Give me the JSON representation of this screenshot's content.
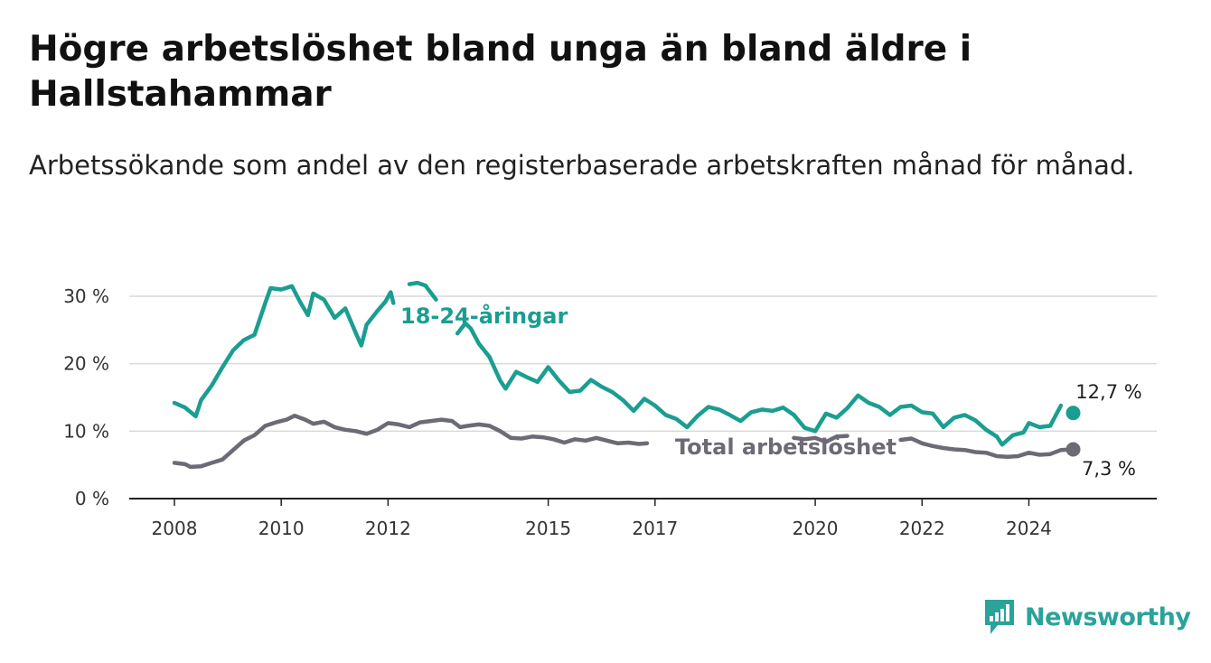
{
  "title": "Högre arbetslöshet bland unga än bland äldre i Hallstahammar",
  "subtitle": "Arbetssökande som andel av den registerbaserade arbetskraften månad för månad.",
  "brand": {
    "name": "Newsworthy",
    "icon": "newsworthy-logo-icon",
    "color": "#2aa399"
  },
  "chart_data": {
    "type": "line",
    "title": "",
    "xlabel": "",
    "ylabel": "",
    "ylim": [
      0,
      30
    ],
    "yticks": [
      0,
      10,
      20,
      30
    ],
    "ytick_labels": [
      "0 %",
      "10 %",
      "20 %",
      "30 %"
    ],
    "xticks": [
      2008,
      2010,
      2012,
      2015,
      2017,
      2020,
      2022,
      2024
    ],
    "xtick_labels": [
      "2008",
      "2010",
      "2012",
      "2015",
      "2017",
      "2020",
      "2022",
      "2024"
    ],
    "grid": true,
    "legend": "none (series labelled inline)",
    "series": [
      {
        "name": "18-24-åringar",
        "color": "#1a9e91",
        "end_label": "12,7 %",
        "points": [
          [
            2008.0,
            14.2
          ],
          [
            2008.2,
            13.5
          ],
          [
            2008.4,
            12.2
          ],
          [
            2008.5,
            14.6
          ],
          [
            2008.7,
            16.8
          ],
          [
            2008.9,
            19.5
          ],
          [
            2009.1,
            22.0
          ],
          [
            2009.3,
            23.5
          ],
          [
            2009.5,
            24.3
          ],
          [
            2009.7,
            29.0
          ],
          [
            2009.8,
            31.2
          ],
          [
            2010.0,
            31.0
          ],
          [
            2010.2,
            31.5
          ],
          [
            2010.35,
            29.2
          ],
          [
            2010.5,
            27.2
          ],
          [
            2010.6,
            30.4
          ],
          [
            2010.8,
            29.5
          ],
          [
            2011.0,
            26.8
          ],
          [
            2011.2,
            28.2
          ],
          [
            2011.4,
            24.5
          ],
          [
            2011.5,
            22.7
          ],
          [
            2011.6,
            25.8
          ],
          [
            2011.8,
            27.8
          ],
          [
            2011.95,
            29.2
          ],
          [
            2012.05,
            30.6
          ],
          [
            2012.1,
            29.0
          ],
          [
            2012.4,
            31.8
          ],
          [
            2012.55,
            32.0
          ],
          [
            2012.7,
            31.6
          ],
          [
            2012.9,
            29.5
          ],
          [
            2013.3,
            24.5
          ],
          [
            2013.45,
            26.0
          ],
          [
            2013.55,
            25.2
          ],
          [
            2013.7,
            23.0
          ],
          [
            2013.9,
            21.0
          ],
          [
            2014.1,
            17.5
          ],
          [
            2014.2,
            16.3
          ],
          [
            2014.4,
            18.8
          ],
          [
            2014.6,
            18.0
          ],
          [
            2014.8,
            17.3
          ],
          [
            2015.0,
            19.5
          ],
          [
            2015.2,
            17.5
          ],
          [
            2015.4,
            15.8
          ],
          [
            2015.6,
            16.0
          ],
          [
            2015.8,
            17.6
          ],
          [
            2016.0,
            16.6
          ],
          [
            2016.2,
            15.8
          ],
          [
            2016.4,
            14.6
          ],
          [
            2016.6,
            13.0
          ],
          [
            2016.8,
            14.8
          ],
          [
            2017.0,
            13.8
          ],
          [
            2017.2,
            12.4
          ],
          [
            2017.4,
            11.8
          ],
          [
            2017.6,
            10.6
          ],
          [
            2017.8,
            12.3
          ],
          [
            2018.0,
            13.6
          ],
          [
            2018.2,
            13.2
          ],
          [
            2018.4,
            12.4
          ],
          [
            2018.6,
            11.5
          ],
          [
            2018.8,
            12.8
          ],
          [
            2019.0,
            13.2
          ],
          [
            2019.2,
            13.0
          ],
          [
            2019.4,
            13.5
          ],
          [
            2019.6,
            12.4
          ],
          [
            2019.8,
            10.5
          ],
          [
            2020.0,
            10.0
          ],
          [
            2020.2,
            12.6
          ],
          [
            2020.4,
            12.0
          ],
          [
            2020.6,
            13.4
          ],
          [
            2020.8,
            15.3
          ],
          [
            2021.0,
            14.2
          ],
          [
            2021.2,
            13.6
          ],
          [
            2021.4,
            12.4
          ],
          [
            2021.6,
            13.6
          ],
          [
            2021.8,
            13.8
          ],
          [
            2022.0,
            12.8
          ],
          [
            2022.2,
            12.6
          ],
          [
            2022.4,
            10.6
          ],
          [
            2022.6,
            12.0
          ],
          [
            2022.8,
            12.4
          ],
          [
            2023.0,
            11.6
          ],
          [
            2023.2,
            10.2
          ],
          [
            2023.4,
            9.2
          ],
          [
            2023.5,
            8.0
          ],
          [
            2023.7,
            9.4
          ],
          [
            2023.9,
            9.8
          ],
          [
            2024.0,
            11.2
          ],
          [
            2024.2,
            10.6
          ],
          [
            2024.4,
            10.8
          ],
          [
            2024.6,
            13.8
          ]
        ],
        "end_point": [
          2024.83,
          12.7
        ]
      },
      {
        "name": "Total arbetslöshet",
        "color": "#6d6a75",
        "end_label": "7,3 %",
        "points": [
          [
            2008.0,
            5.3
          ],
          [
            2008.2,
            5.1
          ],
          [
            2008.3,
            4.7
          ],
          [
            2008.5,
            4.8
          ],
          [
            2008.7,
            5.3
          ],
          [
            2008.9,
            5.8
          ],
          [
            2009.1,
            7.2
          ],
          [
            2009.3,
            8.6
          ],
          [
            2009.5,
            9.4
          ],
          [
            2009.7,
            10.8
          ],
          [
            2009.9,
            11.3
          ],
          [
            2010.1,
            11.7
          ],
          [
            2010.25,
            12.3
          ],
          [
            2010.45,
            11.7
          ],
          [
            2010.6,
            11.1
          ],
          [
            2010.8,
            11.4
          ],
          [
            2011.0,
            10.6
          ],
          [
            2011.2,
            10.2
          ],
          [
            2011.4,
            10.0
          ],
          [
            2011.6,
            9.6
          ],
          [
            2011.8,
            10.2
          ],
          [
            2012.0,
            11.2
          ],
          [
            2012.2,
            11.0
          ],
          [
            2012.4,
            10.6
          ],
          [
            2012.6,
            11.3
          ],
          [
            2012.8,
            11.5
          ],
          [
            2013.0,
            11.7
          ],
          [
            2013.2,
            11.5
          ],
          [
            2013.35,
            10.6
          ],
          [
            2013.5,
            10.8
          ],
          [
            2013.7,
            11.0
          ],
          [
            2013.9,
            10.8
          ],
          [
            2014.1,
            10.0
          ],
          [
            2014.3,
            9.0
          ],
          [
            2014.5,
            8.9
          ],
          [
            2014.7,
            9.2
          ],
          [
            2014.9,
            9.1
          ],
          [
            2015.1,
            8.8
          ],
          [
            2015.3,
            8.3
          ],
          [
            2015.5,
            8.8
          ],
          [
            2015.7,
            8.6
          ],
          [
            2015.9,
            9.0
          ],
          [
            2016.1,
            8.6
          ],
          [
            2016.3,
            8.2
          ],
          [
            2016.5,
            8.3
          ],
          [
            2016.7,
            8.1
          ],
          [
            2016.85,
            8.2
          ],
          [
            2019.6,
            9.0
          ],
          [
            2019.8,
            8.8
          ],
          [
            2020.0,
            9.0
          ],
          [
            2020.2,
            8.4
          ],
          [
            2020.4,
            9.2
          ],
          [
            2020.6,
            9.3
          ],
          [
            2021.6,
            8.7
          ],
          [
            2021.8,
            8.9
          ],
          [
            2022.0,
            8.2
          ],
          [
            2022.2,
            7.8
          ],
          [
            2022.4,
            7.5
          ],
          [
            2022.6,
            7.3
          ],
          [
            2022.8,
            7.2
          ],
          [
            2023.0,
            6.9
          ],
          [
            2023.2,
            6.8
          ],
          [
            2023.4,
            6.3
          ],
          [
            2023.6,
            6.2
          ],
          [
            2023.8,
            6.3
          ],
          [
            2024.0,
            6.8
          ],
          [
            2024.2,
            6.5
          ],
          [
            2024.4,
            6.6
          ],
          [
            2024.6,
            7.2
          ],
          [
            2024.8,
            7.3
          ]
        ],
        "end_point": [
          2024.83,
          7.3
        ]
      }
    ]
  }
}
